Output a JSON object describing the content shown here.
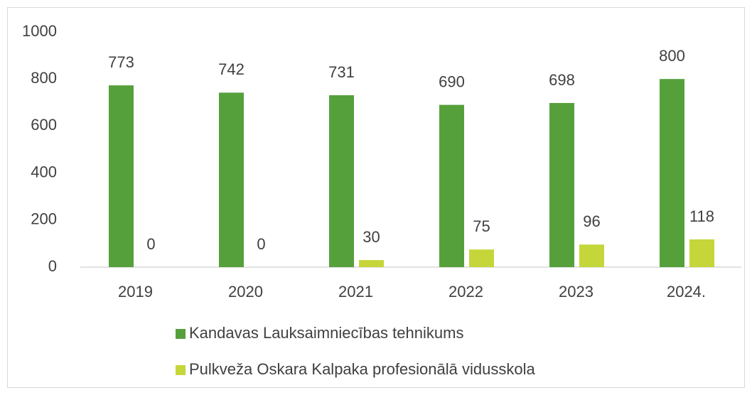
{
  "chart_data": {
    "type": "bar",
    "categories": [
      "2019",
      "2020",
      "2021",
      "2022",
      "2023",
      "2024."
    ],
    "series": [
      {
        "name": "Kandavas Lauksaimniecības tehnikums",
        "color": "#56a03c",
        "values": [
          773,
          742,
          731,
          690,
          698,
          800
        ]
      },
      {
        "name": "Pulkveža Oskara Kalpaka profesionālā vidusskola",
        "color": "#c5d63a",
        "values": [
          0,
          0,
          30,
          75,
          96,
          118
        ]
      }
    ],
    "ylim": [
      0,
      1000
    ],
    "yticks": [
      0,
      200,
      400,
      600,
      800,
      1000
    ],
    "grid": false,
    "legend": "bottom"
  }
}
